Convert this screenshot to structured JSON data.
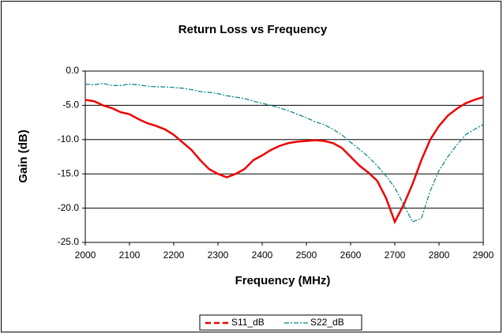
{
  "chart_data": {
    "type": "line",
    "title": "Return Loss vs Frequency",
    "x_label": "Frequency (MHz)",
    "y_label": "Gain (dB)",
    "x": [
      2000,
      2020,
      2040,
      2060,
      2080,
      2100,
      2120,
      2140,
      2160,
      2180,
      2200,
      2220,
      2240,
      2260,
      2280,
      2300,
      2320,
      2340,
      2360,
      2380,
      2400,
      2420,
      2440,
      2460,
      2480,
      2500,
      2520,
      2540,
      2560,
      2580,
      2600,
      2620,
      2640,
      2660,
      2680,
      2700,
      2720,
      2740,
      2760,
      2780,
      2800,
      2820,
      2840,
      2860,
      2880,
      2900
    ],
    "series": [
      {
        "name": "S11_dB",
        "color": "#ee0000",
        "values": [
          -4.2,
          -4.4,
          -5.0,
          -5.4,
          -6.0,
          -6.3,
          -7.0,
          -7.6,
          -8.0,
          -8.5,
          -9.3,
          -10.4,
          -11.5,
          -13.0,
          -14.3,
          -15.0,
          -15.5,
          -15.0,
          -14.3,
          -13.0,
          -12.3,
          -11.5,
          -10.9,
          -10.5,
          -10.3,
          -10.2,
          -10.1,
          -10.2,
          -10.5,
          -11.2,
          -12.5,
          -13.8,
          -14.8,
          -16.0,
          -18.5,
          -22.0,
          -19.5,
          -16.5,
          -13.0,
          -10.0,
          -8.0,
          -6.5,
          -5.5,
          -4.7,
          -4.2,
          -3.8
        ]
      },
      {
        "name": "S22_dB",
        "color": "#008080",
        "values": [
          -1.9,
          -2.0,
          -1.8,
          -2.1,
          -2.1,
          -1.9,
          -2.0,
          -2.2,
          -2.3,
          -2.3,
          -2.4,
          -2.5,
          -2.7,
          -3.0,
          -3.1,
          -3.3,
          -3.6,
          -3.8,
          -4.0,
          -4.4,
          -4.7,
          -5.0,
          -5.4,
          -5.8,
          -6.3,
          -6.8,
          -7.4,
          -7.8,
          -8.5,
          -9.3,
          -10.4,
          -11.4,
          -12.5,
          -13.8,
          -15.3,
          -17.0,
          -19.5,
          -22.0,
          -21.5,
          -17.5,
          -14.5,
          -12.5,
          -10.8,
          -9.3,
          -8.5,
          -7.8
        ]
      }
    ],
    "xlim": [
      2000,
      2900
    ],
    "xticks": [
      2000,
      2100,
      2200,
      2300,
      2400,
      2500,
      2600,
      2700,
      2800,
      2900
    ],
    "ylim": [
      -25,
      0
    ],
    "yticks": [
      {
        "value": 0,
        "label": "0.0"
      },
      {
        "value": -5,
        "label": "-5.0"
      },
      {
        "value": -10,
        "label": "-10.0"
      },
      {
        "value": -15,
        "label": "-15.0"
      },
      {
        "value": -20,
        "label": "-20.0"
      },
      {
        "value": -25,
        "label": "-25.0"
      }
    ],
    "grid": true,
    "legend": "bottom"
  }
}
